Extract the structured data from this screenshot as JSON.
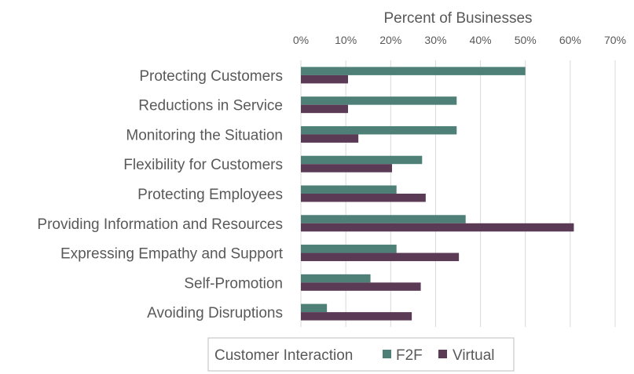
{
  "chart_data": {
    "type": "bar",
    "orientation": "horizontal",
    "xlabel": "Percent of Businesses",
    "xaxis_position": "top",
    "xlim": [
      0,
      0.7
    ],
    "xticks": [
      0,
      0.1,
      0.2,
      0.3,
      0.4,
      0.5,
      0.6,
      0.7
    ],
    "xtick_labels": [
      "0%",
      "10%",
      "20%",
      "30%",
      "40%",
      "50%",
      "60%",
      "70%"
    ],
    "grid": true,
    "categories": [
      "Protecting Customers",
      "Reductions in Service",
      "Monitoring the Situation",
      "Flexibility for Customers",
      "Protecting Employees",
      "Providing Information and Resources",
      "Expressing Empathy and Support",
      "Self-Promotion",
      "Avoiding Disruptions"
    ],
    "series": [
      {
        "name": "F2F",
        "color": "#4e8077",
        "values": [
          0.5,
          0.347,
          0.347,
          0.27,
          0.213,
          0.367,
          0.213,
          0.155,
          0.058
        ]
      },
      {
        "name": "Virtual",
        "color": "#5b3a55",
        "values": [
          0.105,
          0.105,
          0.128,
          0.203,
          0.278,
          0.608,
          0.352,
          0.267,
          0.247
        ]
      }
    ],
    "legend": {
      "title": "Customer Interaction",
      "placement": "bottom"
    }
  }
}
